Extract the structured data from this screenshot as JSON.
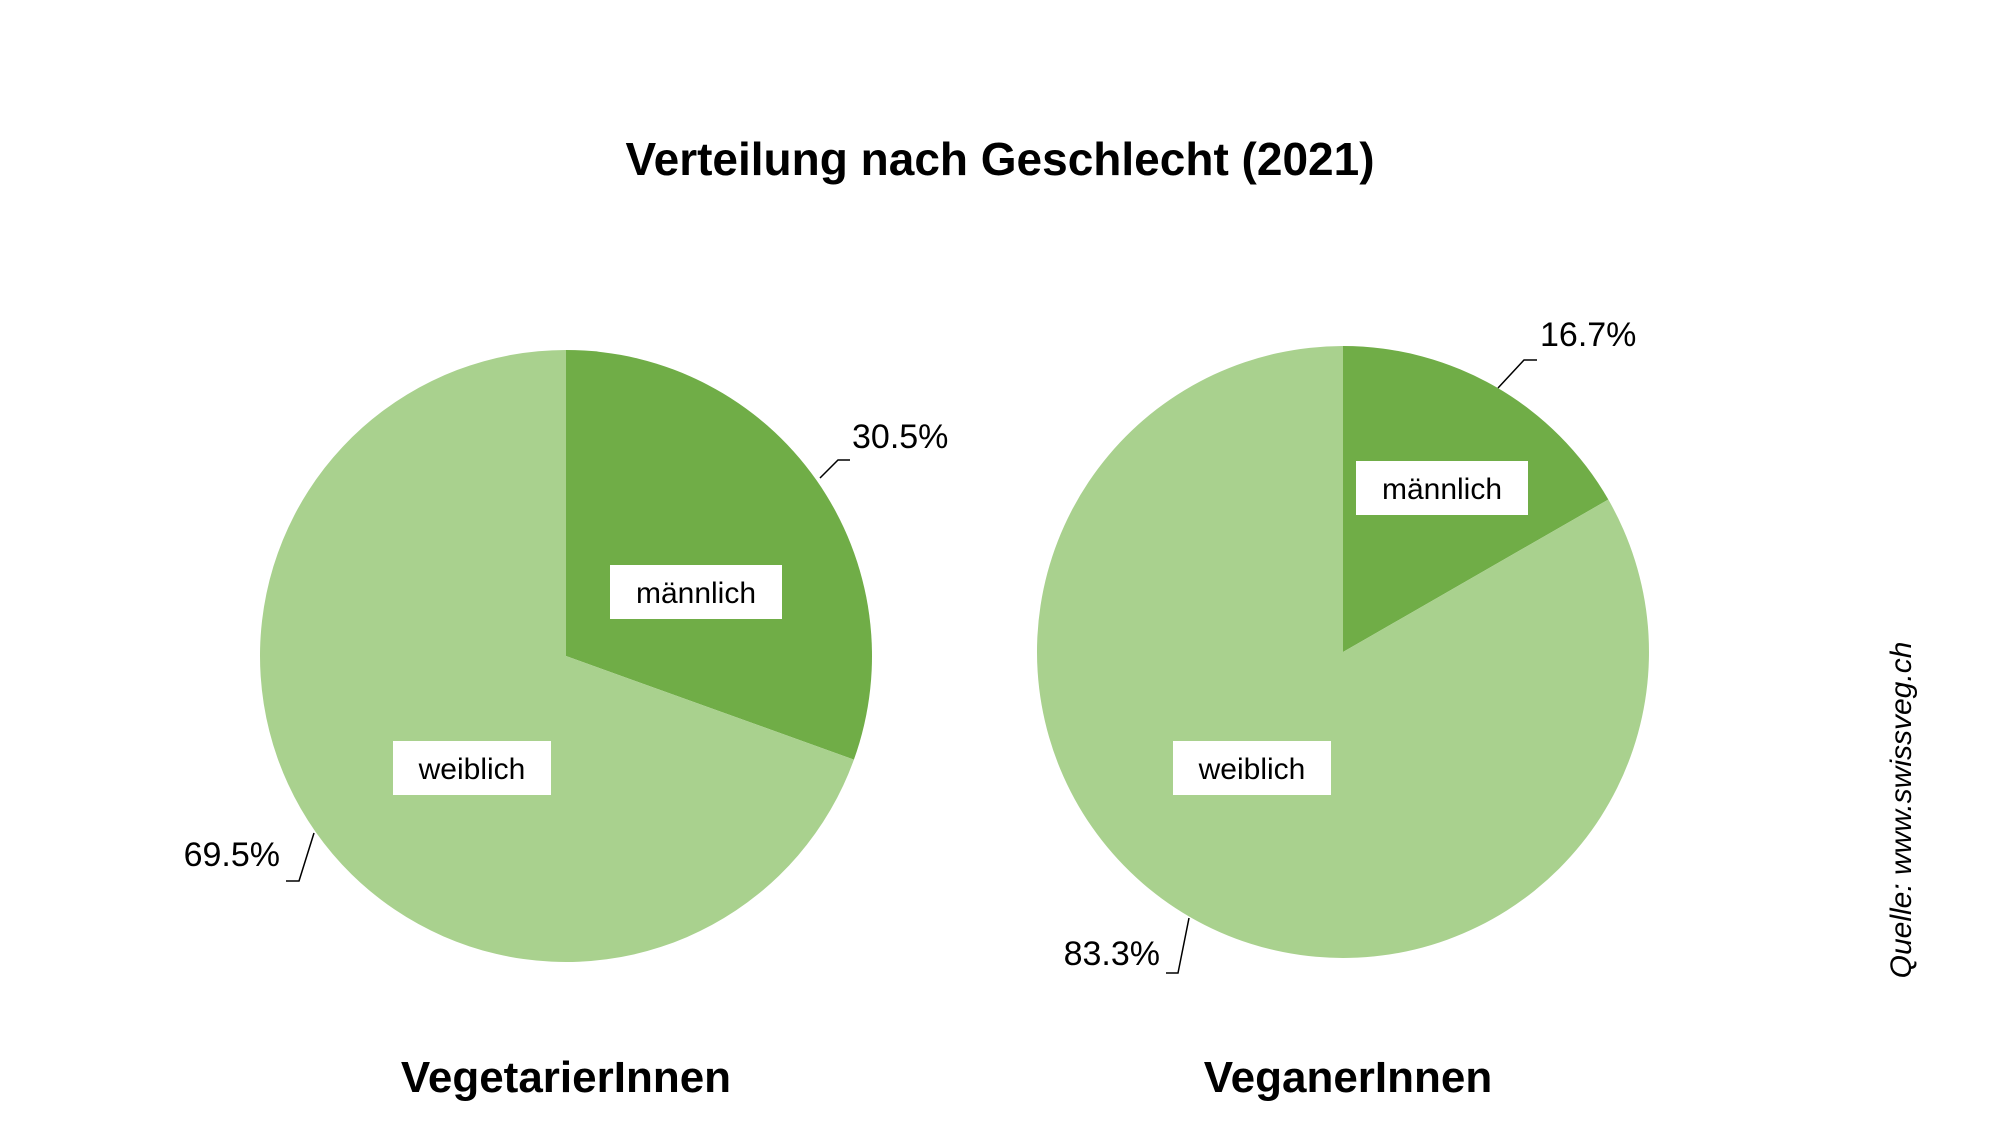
{
  "chart_data": [
    {
      "type": "pie",
      "title": "Verteilung nach Geschlecht (2021)",
      "subtitle": "VegetarierInnen",
      "slices": [
        {
          "label": "männlich",
          "value": 30.5,
          "value_label": "30.5%",
          "color": "#70AD47"
        },
        {
          "label": "weiblich",
          "value": 69.5,
          "value_label": "69.5%",
          "color": "#A9D18E"
        }
      ]
    },
    {
      "type": "pie",
      "subtitle": "VeganerInnen",
      "slices": [
        {
          "label": "männlich",
          "value": 16.7,
          "value_label": "16.7%",
          "color": "#70AD47"
        },
        {
          "label": "weiblich",
          "value": 83.3,
          "value_label": "83.3%",
          "color": "#A9D18E"
        }
      ]
    }
  ],
  "source": "Quelle: www.swissveg.ch"
}
